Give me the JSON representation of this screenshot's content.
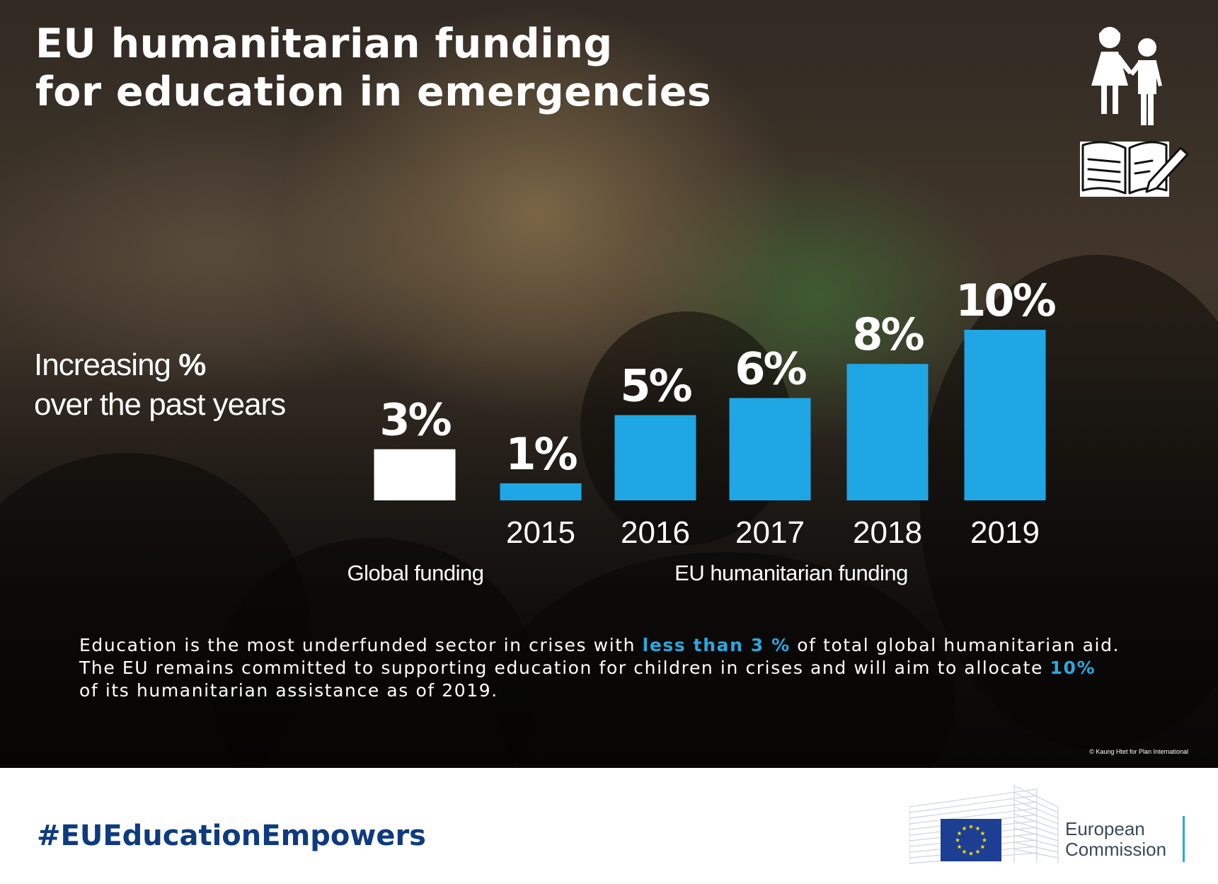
{
  "title": {
    "line1": "EU humanitarian funding",
    "line2": "for education in emergencies"
  },
  "subtitle": {
    "line1_text": "Increasing ",
    "line1_bold": "%",
    "line2": "over the past years"
  },
  "chart_data": {
    "type": "bar",
    "unit": "%",
    "ylim": [
      0,
      10
    ],
    "groups": [
      {
        "label": "Global funding",
        "color": "#ffffff",
        "bars": [
          {
            "category": "",
            "value": 3,
            "label": "3%"
          }
        ]
      },
      {
        "label": "EU humanitarian funding",
        "color": "#1ea7e4",
        "bars": [
          {
            "category": "2015",
            "value": 1,
            "label": "1%"
          },
          {
            "category": "2016",
            "value": 5,
            "label": "5%"
          },
          {
            "category": "2017",
            "value": 6,
            "label": "6%"
          },
          {
            "category": "2018",
            "value": 8,
            "label": "8%"
          },
          {
            "category": "2019",
            "value": 10,
            "label": "10%"
          }
        ]
      }
    ]
  },
  "description": {
    "line1_a": "Education is the most underfunded sector in crises with ",
    "line1_hl": "less than 3 %",
    "line1_b": " of total global humanitarian aid.",
    "line2_a": "The EU remains committed to supporting education for children in crises and will aim to allocate ",
    "line2_hl": "10%",
    "line3": "of its humanitarian assistance as of 2019."
  },
  "photo_credit": "© Kaung Htet for Plan International",
  "hashtag": "#EUEducationEmpowers",
  "logo": {
    "line1": "European",
    "line2": "Commission"
  },
  "colors": {
    "accent_blue": "#1ea7e4",
    "highlight_blue": "#2aa8e0",
    "hashtag_navy": "#0e3b7f",
    "eu_flag_blue": "#1c3f94",
    "eu_star_yellow": "#ffdd00"
  },
  "icons": [
    "children-icon",
    "open-book-pencil-icon",
    "eu-flag-icon"
  ]
}
